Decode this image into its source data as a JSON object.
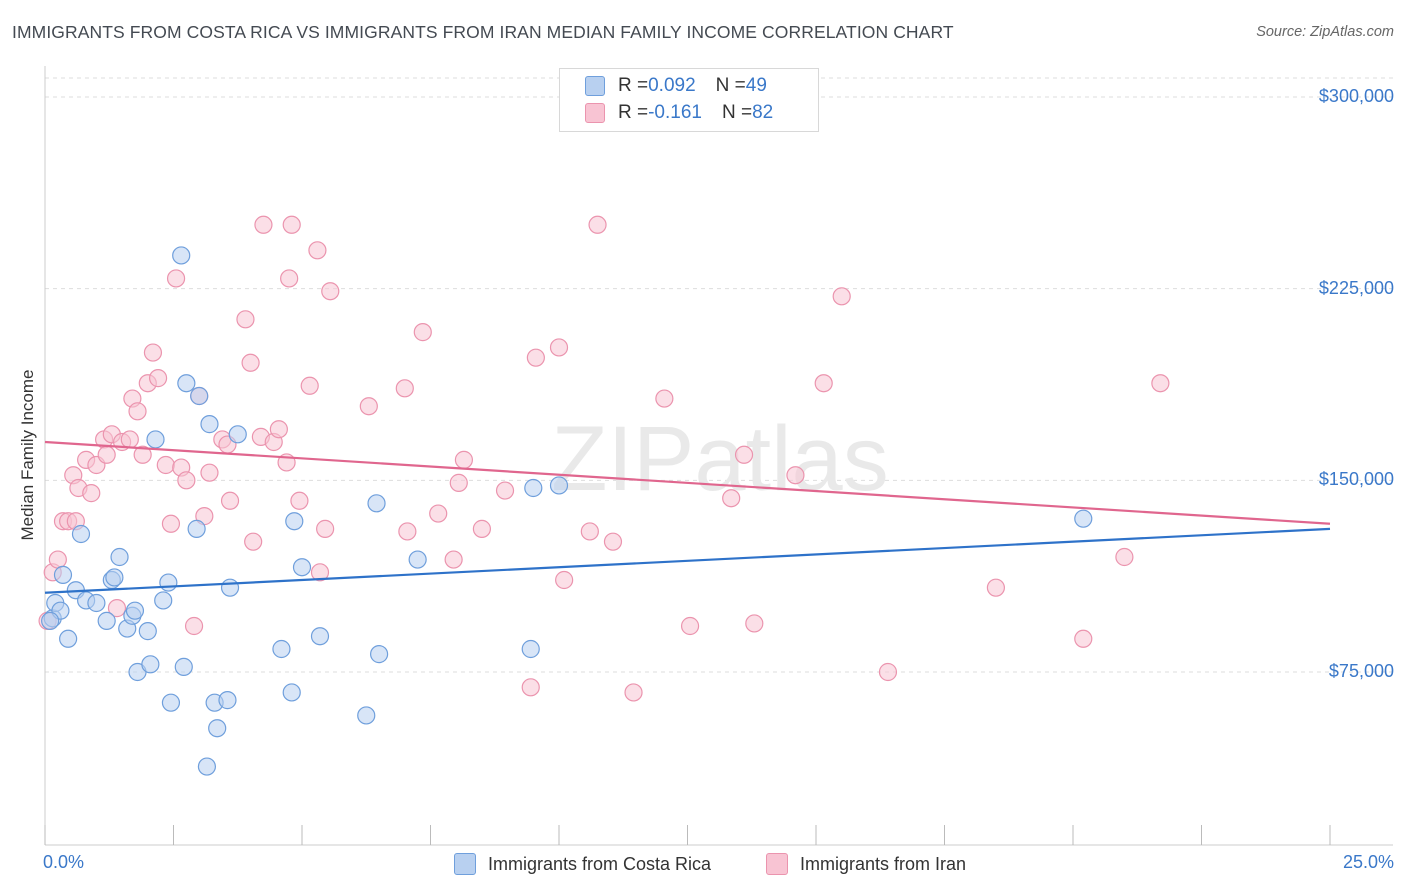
{
  "title": "IMMIGRANTS FROM COSTA RICA VS IMMIGRANTS FROM IRAN MEDIAN FAMILY INCOME CORRELATION CHART",
  "source": "Source: ZipAtlas.com",
  "watermark": "ZIPatlas",
  "legend": {
    "blue": {
      "r_label": "R = ",
      "r_value": "0.092",
      "n_label": "N = ",
      "n_value": "49"
    },
    "pink": {
      "r_label": "R = ",
      "r_value": "-0.161",
      "n_label": "N = ",
      "n_value": "82"
    }
  },
  "bottom_legend": {
    "blue": "Immigrants from Costa Rica",
    "pink": "Immigrants from Iran"
  },
  "colors": {
    "blue_fill": "#b8d0f0",
    "blue_stroke": "#6f9fdc",
    "blue_line": "#2e72c9",
    "pink_fill": "#f8c4d3",
    "pink_stroke": "#eb94ae",
    "pink_line": "#e0668e",
    "axis_text": "#3a78c9",
    "grid": "#dddddd"
  },
  "chart_data": {
    "type": "scatter",
    "title": "IMMIGRANTS FROM COSTA RICA VS IMMIGRANTS FROM IRAN MEDIAN FAMILY INCOME CORRELATION CHART",
    "xlabel": "",
    "ylabel": "Median Family Income",
    "xlim": [
      0,
      25
    ],
    "ylim": [
      0,
      312000
    ],
    "x_tick_labels": [
      "0.0%",
      "25.0%"
    ],
    "y_ticks": [
      75000,
      150000,
      225000,
      300000
    ],
    "y_tick_labels": [
      "$75,000",
      "$150,000",
      "$225,000",
      "$300,000"
    ],
    "series": [
      {
        "name": "Immigrants from Costa Rica",
        "color": "blue",
        "trend": {
          "x0": 0,
          "y0": 106000,
          "x1": 25,
          "y1": 131000
        },
        "points": [
          [
            0.15,
            96000
          ],
          [
            0.2,
            102000
          ],
          [
            0.3,
            99000
          ],
          [
            0.35,
            113000
          ],
          [
            0.45,
            88000
          ],
          [
            0.6,
            107000
          ],
          [
            0.7,
            129000
          ],
          [
            0.8,
            103000
          ],
          [
            1.0,
            102000
          ],
          [
            1.2,
            95000
          ],
          [
            1.3,
            111000
          ],
          [
            1.35,
            112000
          ],
          [
            1.45,
            120000
          ],
          [
            1.6,
            92000
          ],
          [
            1.7,
            97000
          ],
          [
            1.75,
            99000
          ],
          [
            1.8,
            75000
          ],
          [
            2.0,
            91000
          ],
          [
            2.05,
            78000
          ],
          [
            2.15,
            166000
          ],
          [
            2.3,
            103000
          ],
          [
            2.4,
            110000
          ],
          [
            2.45,
            63000
          ],
          [
            2.65,
            238000
          ],
          [
            2.7,
            77000
          ],
          [
            2.75,
            188000
          ],
          [
            2.95,
            131000
          ],
          [
            3.0,
            183000
          ],
          [
            3.15,
            38000
          ],
          [
            3.2,
            172000
          ],
          [
            3.3,
            63000
          ],
          [
            3.35,
            53000
          ],
          [
            3.55,
            64000
          ],
          [
            3.6,
            108000
          ],
          [
            3.75,
            168000
          ],
          [
            4.6,
            84000
          ],
          [
            4.8,
            67000
          ],
          [
            4.85,
            134000
          ],
          [
            5.0,
            116000
          ],
          [
            5.35,
            89000
          ],
          [
            6.25,
            58000
          ],
          [
            6.45,
            141000
          ],
          [
            6.5,
            82000
          ],
          [
            7.25,
            119000
          ],
          [
            9.45,
            84000
          ],
          [
            9.5,
            147000
          ],
          [
            10.0,
            148000
          ],
          [
            20.2,
            135000
          ],
          [
            0.1,
            95000
          ]
        ]
      },
      {
        "name": "Immigrants from Iran",
        "color": "pink",
        "trend": {
          "x0": 0,
          "y0": 165000,
          "x1": 25,
          "y1": 133000
        },
        "points": [
          [
            0.05,
            95000
          ],
          [
            0.15,
            114000
          ],
          [
            0.25,
            119000
          ],
          [
            0.35,
            134000
          ],
          [
            0.45,
            134000
          ],
          [
            0.55,
            152000
          ],
          [
            0.65,
            147000
          ],
          [
            0.8,
            158000
          ],
          [
            0.9,
            145000
          ],
          [
            1.0,
            156000
          ],
          [
            1.15,
            166000
          ],
          [
            1.3,
            168000
          ],
          [
            1.4,
            100000
          ],
          [
            1.5,
            165000
          ],
          [
            1.65,
            166000
          ],
          [
            1.7,
            182000
          ],
          [
            1.8,
            177000
          ],
          [
            1.9,
            160000
          ],
          [
            2.0,
            188000
          ],
          [
            2.1,
            200000
          ],
          [
            2.2,
            190000
          ],
          [
            2.35,
            156000
          ],
          [
            2.45,
            133000
          ],
          [
            2.55,
            229000
          ],
          [
            2.65,
            155000
          ],
          [
            2.75,
            150000
          ],
          [
            2.9,
            93000
          ],
          [
            3.0,
            183000
          ],
          [
            3.1,
            136000
          ],
          [
            3.2,
            153000
          ],
          [
            3.45,
            166000
          ],
          [
            3.55,
            164000
          ],
          [
            3.6,
            142000
          ],
          [
            3.9,
            213000
          ],
          [
            4.0,
            196000
          ],
          [
            4.05,
            126000
          ],
          [
            4.2,
            167000
          ],
          [
            4.25,
            250000
          ],
          [
            4.45,
            165000
          ],
          [
            4.55,
            170000
          ],
          [
            4.7,
            157000
          ],
          [
            4.75,
            229000
          ],
          [
            4.8,
            250000
          ],
          [
            4.95,
            142000
          ],
          [
            5.15,
            187000
          ],
          [
            5.3,
            240000
          ],
          [
            5.35,
            114000
          ],
          [
            5.45,
            131000
          ],
          [
            5.55,
            224000
          ],
          [
            6.3,
            179000
          ],
          [
            7.0,
            186000
          ],
          [
            7.05,
            130000
          ],
          [
            7.35,
            208000
          ],
          [
            7.65,
            137000
          ],
          [
            7.95,
            119000
          ],
          [
            8.05,
            149000
          ],
          [
            8.15,
            158000
          ],
          [
            8.5,
            131000
          ],
          [
            8.95,
            146000
          ],
          [
            9.45,
            69000
          ],
          [
            9.55,
            198000
          ],
          [
            10.0,
            202000
          ],
          [
            10.1,
            111000
          ],
          [
            10.6,
            130000
          ],
          [
            10.75,
            250000
          ],
          [
            11.05,
            126000
          ],
          [
            11.45,
            67000
          ],
          [
            12.05,
            182000
          ],
          [
            12.55,
            93000
          ],
          [
            13.35,
            143000
          ],
          [
            13.6,
            160000
          ],
          [
            13.8,
            94000
          ],
          [
            14.6,
            152000
          ],
          [
            15.15,
            188000
          ],
          [
            15.5,
            222000
          ],
          [
            16.4,
            75000
          ],
          [
            18.5,
            108000
          ],
          [
            20.2,
            88000
          ],
          [
            21.0,
            120000
          ],
          [
            21.7,
            188000
          ],
          [
            0.6,
            134000
          ],
          [
            1.2,
            160000
          ]
        ]
      }
    ]
  }
}
